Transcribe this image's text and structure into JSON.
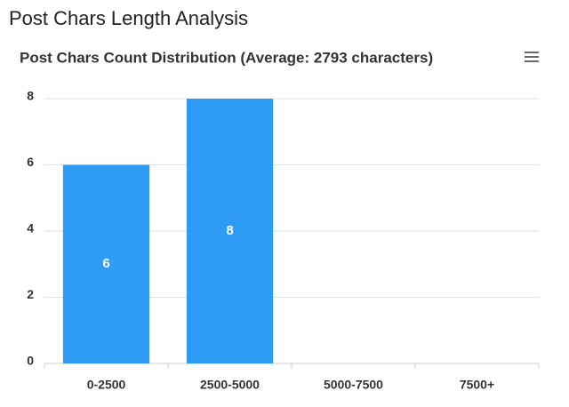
{
  "heading": "Post Chars Length Analysis",
  "chart_data": {
    "type": "bar",
    "title": "Post Chars Count Distribution (Average: 2793 characters)",
    "categories": [
      "0-2500",
      "2500-5000",
      "5000-7500",
      "7500+"
    ],
    "values": [
      6,
      8,
      0,
      0
    ],
    "color": "#2e9bf5",
    "ylim": [
      0,
      8
    ],
    "yticks": [
      0,
      2,
      4,
      6,
      8
    ],
    "grid": true
  }
}
